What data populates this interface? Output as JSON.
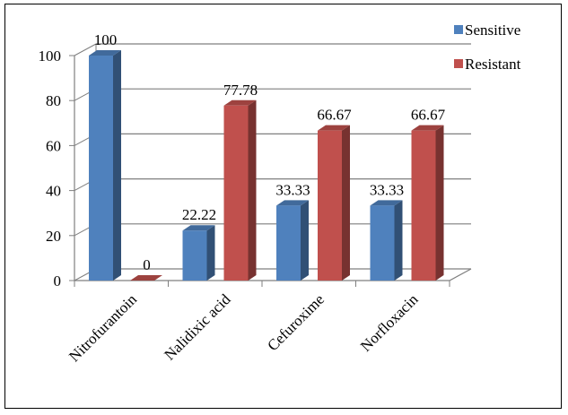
{
  "chart_data": {
    "type": "bar",
    "categories": [
      "Nitrofurantoin",
      "Nalidixic acid",
      "Cefuroxime",
      "Norfloxacin"
    ],
    "series": [
      {
        "name": "Sensitive",
        "values": [
          100,
          22.22,
          33.33,
          33.33
        ],
        "labels": [
          "100",
          "22.22",
          "33.33",
          "33.33"
        ],
        "color": "#4F81BD"
      },
      {
        "name": "Resistant",
        "values": [
          0,
          77.78,
          66.67,
          66.67
        ],
        "labels": [
          "0",
          "77.78",
          "66.67",
          "66.67"
        ],
        "color": "#C0504D"
      }
    ],
    "yticks": [
      "0",
      "20",
      "40",
      "60",
      "80",
      "100"
    ],
    "ylim": [
      0,
      100
    ],
    "grid": true,
    "legend": "top-right",
    "style": "3d-clustered-column"
  }
}
